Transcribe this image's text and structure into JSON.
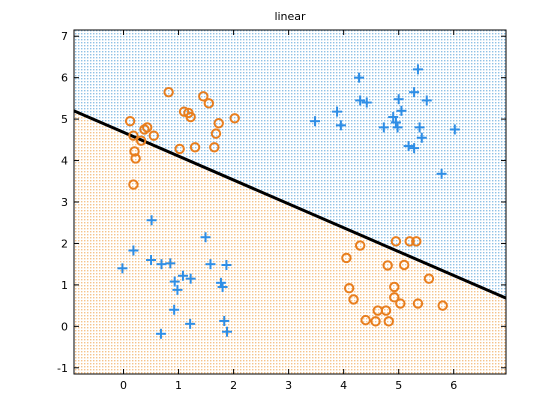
{
  "chart_data": {
    "type": "scatter",
    "title": "linear",
    "xlabel": "",
    "ylabel": "",
    "xlim": [
      -0.9,
      6.95
    ],
    "ylim": [
      -1.15,
      7.15
    ],
    "xticks": [
      0,
      1,
      2,
      3,
      4,
      5,
      6
    ],
    "yticks": [
      -1,
      0,
      1,
      2,
      3,
      4,
      5,
      6,
      7
    ],
    "grid": false,
    "legend": "none",
    "boundary_line": {
      "x": [
        -0.9,
        6.95
      ],
      "y": [
        5.2,
        0.68
      ]
    },
    "regions": {
      "above_color": "#8fc1e6",
      "below_color": "#f5c38a"
    },
    "series": [
      {
        "marker": "plus",
        "color": "#2e8ee6",
        "points": [
          [
            -0.02,
            1.4
          ],
          [
            0.18,
            1.83
          ],
          [
            0.51,
            2.56
          ],
          [
            0.5,
            1.6
          ],
          [
            0.69,
            1.5
          ],
          [
            0.85,
            1.52
          ],
          [
            0.93,
            1.08
          ],
          [
            0.98,
            0.88
          ],
          [
            1.08,
            1.22
          ],
          [
            1.22,
            1.15
          ],
          [
            0.92,
            0.4
          ],
          [
            1.21,
            0.06
          ],
          [
            1.49,
            2.15
          ],
          [
            1.58,
            1.5
          ],
          [
            1.77,
            1.05
          ],
          [
            1.8,
            0.95
          ],
          [
            1.87,
            1.48
          ],
          [
            1.83,
            0.13
          ],
          [
            1.88,
            -0.13
          ],
          [
            0.68,
            -0.18
          ],
          [
            3.48,
            4.95
          ],
          [
            3.88,
            5.18
          ],
          [
            3.95,
            4.85
          ],
          [
            4.28,
            6.0
          ],
          [
            4.3,
            5.45
          ],
          [
            4.42,
            5.4
          ],
          [
            4.73,
            4.8
          ],
          [
            4.9,
            5.05
          ],
          [
            4.95,
            4.92
          ],
          [
            4.98,
            4.8
          ],
          [
            5.0,
            5.48
          ],
          [
            5.05,
            5.2
          ],
          [
            5.18,
            4.35
          ],
          [
            5.28,
            4.3
          ],
          [
            5.28,
            5.65
          ],
          [
            5.35,
            6.2
          ],
          [
            5.38,
            4.8
          ],
          [
            5.42,
            4.55
          ],
          [
            5.51,
            5.45
          ],
          [
            5.78,
            3.68
          ],
          [
            6.02,
            4.75
          ]
        ]
      },
      {
        "marker": "circle",
        "color": "#e87e1e",
        "points": [
          [
            0.12,
            4.95
          ],
          [
            0.18,
            4.6
          ],
          [
            0.2,
            4.22
          ],
          [
            0.22,
            4.05
          ],
          [
            0.18,
            3.42
          ],
          [
            0.32,
            4.48
          ],
          [
            0.38,
            4.75
          ],
          [
            0.43,
            4.8
          ],
          [
            0.55,
            4.6
          ],
          [
            0.82,
            5.65
          ],
          [
            1.02,
            4.28
          ],
          [
            1.1,
            5.18
          ],
          [
            1.18,
            5.15
          ],
          [
            1.22,
            5.05
          ],
          [
            1.3,
            4.32
          ],
          [
            1.45,
            5.55
          ],
          [
            1.55,
            5.38
          ],
          [
            1.65,
            4.32
          ],
          [
            1.68,
            4.65
          ],
          [
            1.73,
            4.9
          ],
          [
            2.02,
            5.02
          ],
          [
            4.05,
            1.65
          ],
          [
            4.1,
            0.92
          ],
          [
            4.18,
            0.65
          ],
          [
            4.3,
            1.95
          ],
          [
            4.4,
            0.15
          ],
          [
            4.58,
            0.12
          ],
          [
            4.62,
            0.38
          ],
          [
            4.77,
            0.38
          ],
          [
            4.8,
            1.47
          ],
          [
            4.82,
            0.12
          ],
          [
            4.92,
            0.95
          ],
          [
            4.92,
            0.7
          ],
          [
            4.95,
            2.05
          ],
          [
            5.03,
            0.55
          ],
          [
            5.1,
            1.48
          ],
          [
            5.2,
            2.05
          ],
          [
            5.32,
            2.05
          ],
          [
            5.35,
            0.55
          ],
          [
            5.55,
            1.15
          ],
          [
            5.8,
            0.5
          ]
        ]
      }
    ]
  }
}
